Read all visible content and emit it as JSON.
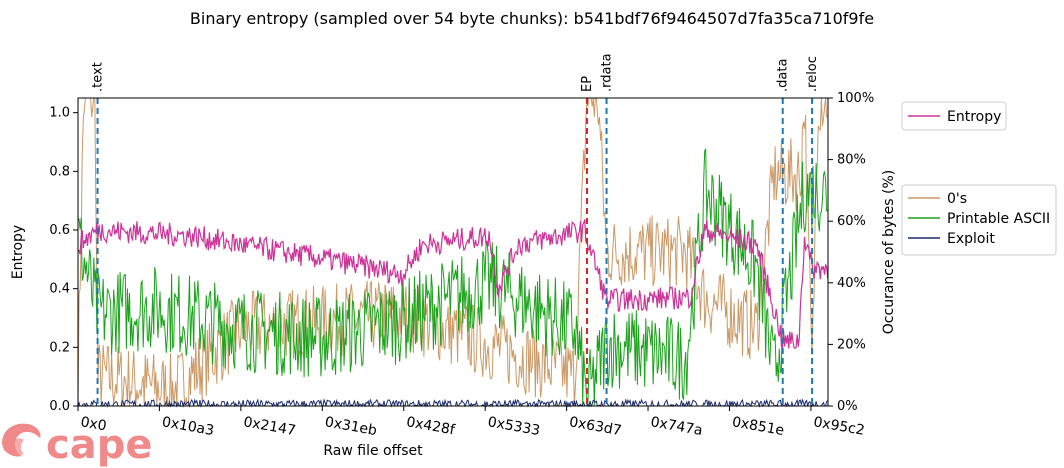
{
  "chart_data": {
    "type": "line",
    "title": "Binary entropy (sampled over 54 byte chunks): b541bdf76f9464507d7fa35ca710f9fe",
    "xlabel": "Raw file offset",
    "ylabel_left": "Entropy",
    "ylabel_right": "Occurance of bytes (%)",
    "xlim": [
      0,
      39232
    ],
    "ylim_left": [
      0,
      1.05
    ],
    "ylim_right": [
      0,
      100
    ],
    "x_ticks": [
      0,
      4259,
      8519,
      12779,
      17039,
      21299,
      25559,
      29818,
      34078,
      38338
    ],
    "x_tick_labels": [
      "0x0",
      "0x10a3",
      "0x2147",
      "0x31eb",
      "0x428f",
      "0x5333",
      "0x63d7",
      "0x747a",
      "0x851e",
      "0x95c2"
    ],
    "y_ticks_left": [
      "0.0",
      "0.2",
      "0.4",
      "0.6",
      "0.8",
      "1.0"
    ],
    "y_ticks_right": [
      "0%",
      "20%",
      "40%",
      "60%",
      "80%",
      "100%"
    ],
    "section_markers": [
      {
        "label": ".text",
        "x": 1024,
        "color": "#1f77b4"
      },
      {
        "label": "EP",
        "x": 26624,
        "color": "#d62728"
      },
      {
        "label": ".rdata",
        "x": 27648,
        "color": "#1f77b4"
      },
      {
        "label": ".data",
        "x": 36864,
        "color": "#1f77b4"
      },
      {
        "label": ".reloc",
        "x": 38400,
        "color": "#1f77b4"
      }
    ],
    "legend_entropy": [
      {
        "name": "Entropy",
        "color": "#cc3399"
      }
    ],
    "legend_bytes": [
      {
        "name": "0's",
        "color": "#cc9966"
      },
      {
        "name": "Printable ASCII",
        "color": "#1aa31a"
      },
      {
        "name": "Exploit",
        "color": "#1a2a6e"
      }
    ],
    "series_segments": {
      "Entropy": [
        [
          0,
          0.55
        ],
        [
          1024,
          0.6
        ],
        [
          6000,
          0.58
        ],
        [
          8500,
          0.55
        ],
        [
          13000,
          0.5
        ],
        [
          17000,
          0.45
        ],
        [
          18000,
          0.55
        ],
        [
          21500,
          0.58
        ],
        [
          22000,
          0.4
        ],
        [
          23000,
          0.55
        ],
        [
          26500,
          0.6
        ],
        [
          27648,
          0.36
        ],
        [
          32000,
          0.37
        ],
        [
          32800,
          0.6
        ],
        [
          35500,
          0.55
        ],
        [
          36864,
          0.22
        ],
        [
          37700,
          0.22
        ],
        [
          38000,
          0.58
        ],
        [
          38400,
          0.47
        ],
        [
          39232,
          0.47
        ]
      ],
      "0's": [
        [
          0,
          10
        ],
        [
          300,
          100
        ],
        [
          900,
          100
        ],
        [
          1024,
          10
        ],
        [
          5000,
          5
        ],
        [
          8500,
          25
        ],
        [
          17000,
          30
        ],
        [
          21500,
          20
        ],
        [
          26000,
          10
        ],
        [
          26624,
          100
        ],
        [
          27200,
          100
        ],
        [
          27648,
          50
        ],
        [
          31800,
          50
        ],
        [
          32800,
          35
        ],
        [
          35500,
          25
        ],
        [
          36400,
          75
        ],
        [
          37800,
          75
        ],
        [
          38000,
          100
        ],
        [
          38400,
          10
        ],
        [
          38700,
          100
        ],
        [
          39232,
          100
        ]
      ],
      "Printable ASCII": [
        [
          0,
          55
        ],
        [
          1024,
          30
        ],
        [
          4000,
          32
        ],
        [
          8500,
          25
        ],
        [
          13000,
          22
        ],
        [
          17000,
          28
        ],
        [
          21500,
          40
        ],
        [
          26000,
          25
        ],
        [
          26624,
          2
        ],
        [
          27648,
          20
        ],
        [
          31800,
          15
        ],
        [
          32800,
          70
        ],
        [
          35500,
          45
        ],
        [
          36400,
          10
        ],
        [
          38000,
          70
        ],
        [
          39232,
          70
        ]
      ],
      "Exploit": [
        [
          0,
          0.5
        ],
        [
          39232,
          0.5
        ]
      ]
    }
  },
  "brand": {
    "logo_text": "cape",
    "logo_color": "#f08a8a"
  }
}
